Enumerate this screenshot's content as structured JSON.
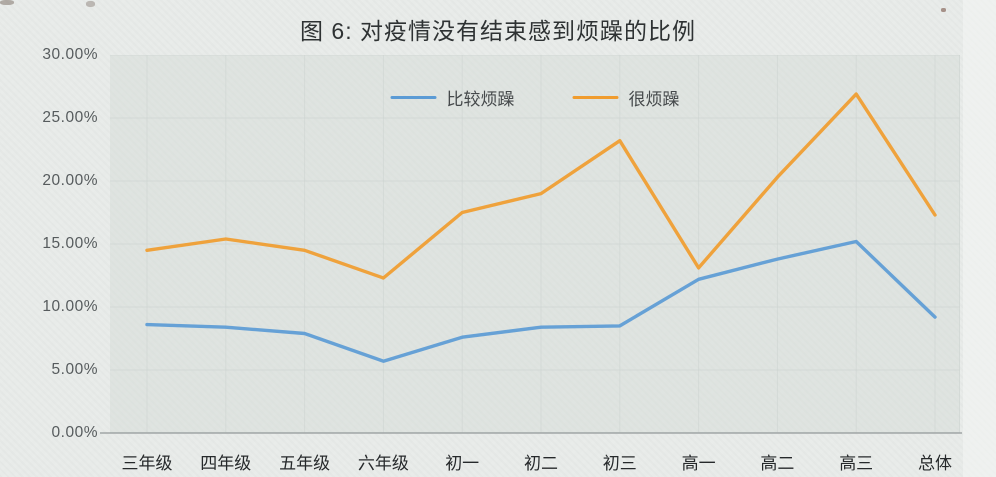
{
  "chart": {
    "title": "图 6: 对疫情没有结束感到烦躁的比例"
  },
  "chart_data": {
    "type": "line",
    "title": "图 6: 对疫情没有结束感到烦躁的比例",
    "categories": [
      "三年级",
      "四年级",
      "五年级",
      "六年级",
      "初一",
      "初二",
      "初三",
      "高一",
      "高二",
      "高三",
      "总体"
    ],
    "series": [
      {
        "name": "比较烦躁",
        "color": "#5b9bd5",
        "values": [
          8.6,
          8.4,
          7.9,
          5.7,
          7.6,
          8.4,
          8.5,
          12.2,
          13.8,
          15.2,
          9.2
        ]
      },
      {
        "name": "很烦躁",
        "color": "#f09c2e",
        "values": [
          14.5,
          15.4,
          14.5,
          12.3,
          17.5,
          19.0,
          23.2,
          13.1,
          20.3,
          26.9,
          17.3
        ]
      }
    ],
    "y_ticks": [
      "0.00%",
      "5.00%",
      "10.00%",
      "15.00%",
      "20.00%",
      "25.00%",
      "30.00%"
    ],
    "ylim": [
      0,
      30
    ],
    "grid": true,
    "gridline_color": "#ccd3d0",
    "axis_color": "#a0a6a5",
    "legend_position": "top-center"
  }
}
